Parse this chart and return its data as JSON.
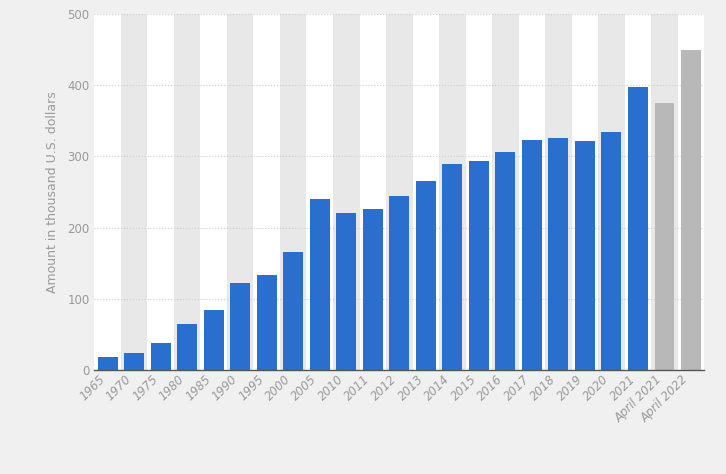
{
  "categories": [
    "1965",
    "1970",
    "1975",
    "1980",
    "1985",
    "1990",
    "1995",
    "2000",
    "2005",
    "2010",
    "2011",
    "2012",
    "2013",
    "2014",
    "2015",
    "2016",
    "2017",
    "2018",
    "2019",
    "2020",
    "2021",
    "April 2021",
    "April 2022"
  ],
  "values": [
    18,
    23,
    37,
    64,
    84,
    122,
    133,
    165,
    240,
    221,
    226,
    245,
    265,
    289,
    294,
    306,
    323,
    326,
    321,
    335,
    397,
    375,
    450
  ],
  "bar_colors": [
    "#2b6fce",
    "#2b6fce",
    "#2b6fce",
    "#2b6fce",
    "#2b6fce",
    "#2b6fce",
    "#2b6fce",
    "#2b6fce",
    "#2b6fce",
    "#2b6fce",
    "#2b6fce",
    "#2b6fce",
    "#2b6fce",
    "#2b6fce",
    "#2b6fce",
    "#2b6fce",
    "#2b6fce",
    "#2b6fce",
    "#2b6fce",
    "#2b6fce",
    "#2b6fce",
    "#b8b8b8",
    "#b8b8b8"
  ],
  "ylabel": "Amount in thousand U.S. dollars",
  "ylim": [
    0,
    500
  ],
  "yticks": [
    0,
    100,
    200,
    300,
    400,
    500
  ],
  "background_color": "#f0f0f0",
  "plot_bg_color": "#ffffff",
  "stripe_color": "#e8e8e8",
  "grid_color": "#cccccc",
  "bar_width": 0.75,
  "ylabel_fontsize": 9,
  "tick_fontsize": 8.5,
  "tick_color": "#999999",
  "stripe_odd": true
}
